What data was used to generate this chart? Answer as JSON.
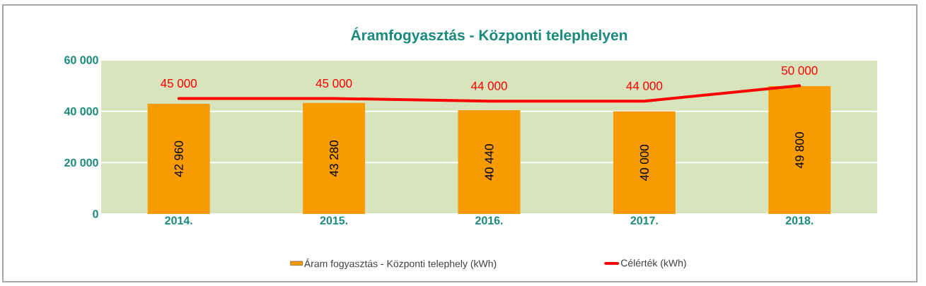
{
  "chart_data": {
    "type": "bar",
    "title": "Áramfogyasztás - Központi telephelyen",
    "categories": [
      "2014.",
      "2015.",
      "2016.",
      "2017.",
      "2018."
    ],
    "series": [
      {
        "name": "Áram fogyasztás - Központi telephely (kWh)",
        "color": "#f79b00",
        "values": [
          42960,
          43280,
          40440,
          40000,
          49800
        ],
        "value_labels": [
          "42 960",
          "43 280",
          "40 440",
          "40 000",
          "49 800"
        ]
      },
      {
        "type": "line",
        "name": "Célérték (kWh)",
        "color": "#ff0000",
        "values": [
          45000,
          45000,
          44000,
          44000,
          50000
        ],
        "value_labels": [
          "45 000",
          "45 000",
          "44 000",
          "44 000",
          "50 000"
        ]
      }
    ],
    "ylim": [
      0,
      60000
    ],
    "yticks": [
      0,
      {
        "value": 20000,
        "label": "20 000"
      },
      {
        "value": 40000,
        "label": "40 000"
      },
      {
        "value": 60000,
        "label": "60 000"
      }
    ],
    "grid": "y",
    "legend": "bottom"
  }
}
